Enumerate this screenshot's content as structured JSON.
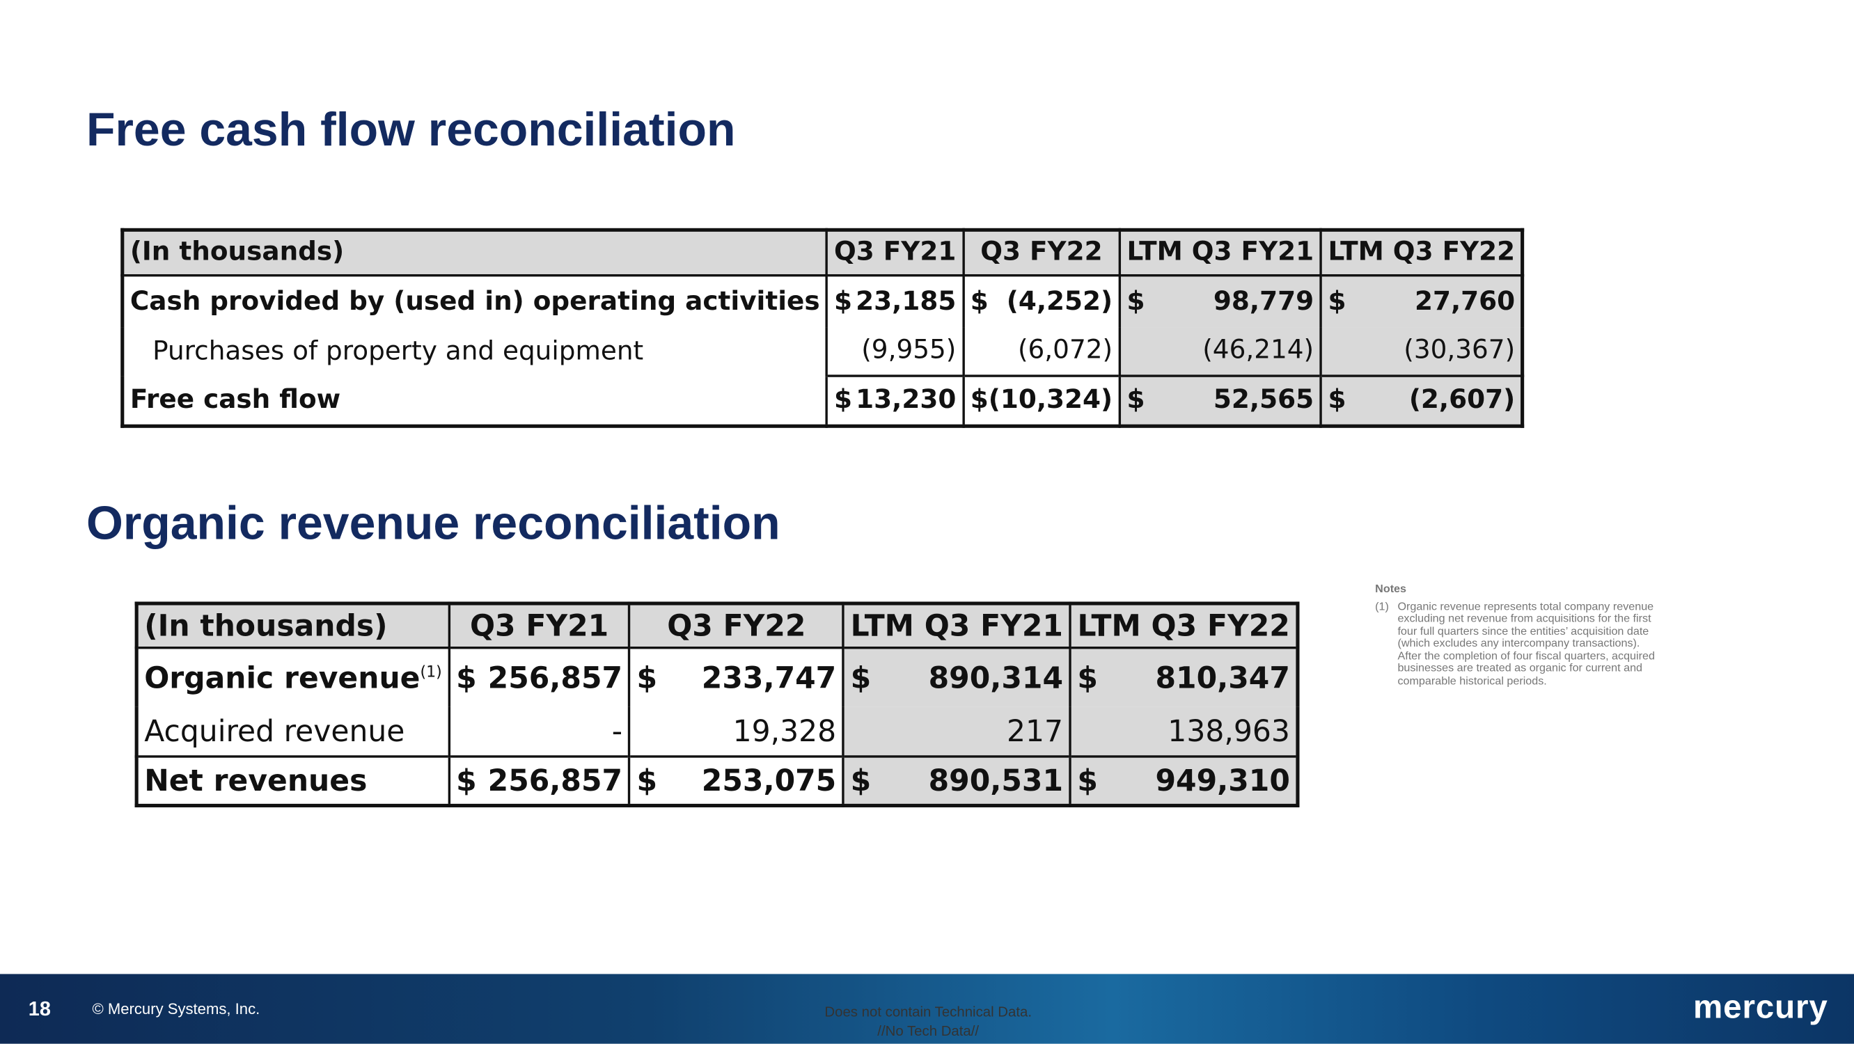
{
  "titles": {
    "fcf": "Free cash flow reconciliation",
    "organic": "Organic revenue reconciliation"
  },
  "fcf_table": {
    "header": [
      "(In thousands)",
      "Q3 FY21",
      "Q3 FY22",
      "LTM Q3 FY21",
      "LTM Q3 FY22"
    ],
    "rows": [
      {
        "label": "Cash provided by (used in) operating activities",
        "cells": [
          {
            "cur": "$",
            "amt": "23,185"
          },
          {
            "cur": "$",
            "amt": "(4,252)"
          },
          {
            "cur": "$",
            "amt": "98,779"
          },
          {
            "cur": "$",
            "amt": "27,760"
          }
        ]
      },
      {
        "label": "Purchases of property and equipment",
        "cells": [
          "(9,955)",
          "(6,072)",
          "(46,214)",
          "(30,367)"
        ]
      },
      {
        "label": "Free cash flow",
        "cells": [
          {
            "cur": "$",
            "amt": "13,230"
          },
          {
            "cur": "$",
            "amt": "(10,324)"
          },
          {
            "cur": "$",
            "amt": "52,565"
          },
          {
            "cur": "$",
            "amt": "(2,607)"
          }
        ]
      }
    ]
  },
  "organic_table": {
    "header": [
      "(In thousands)",
      "Q3 FY21",
      "Q3 FY22",
      "LTM Q3 FY21",
      "LTM Q3 FY22"
    ],
    "rows": [
      {
        "label": "Organic revenue",
        "note": "(1)",
        "cells": [
          {
            "cur": "$",
            "amt": "256,857"
          },
          {
            "cur": "$",
            "amt": "233,747"
          },
          {
            "cur": "$",
            "amt": "890,314"
          },
          {
            "cur": "$",
            "amt": "810,347"
          }
        ]
      },
      {
        "label": "Acquired revenue",
        "cells": [
          "-",
          "19,328",
          "217",
          "138,963"
        ]
      },
      {
        "label": "Net revenues",
        "cells": [
          {
            "cur": "$",
            "amt": "256,857"
          },
          {
            "cur": "$",
            "amt": "253,075"
          },
          {
            "cur": "$",
            "amt": "890,531"
          },
          {
            "cur": "$",
            "amt": "949,310"
          }
        ]
      }
    ]
  },
  "notes": {
    "title": "Notes",
    "items": [
      {
        "marker": "(1)",
        "text": "Organic revenue represents total company revenue excluding net revenue from acquisitions for the first four full quarters since the entities’ acquisition date (which excludes any intercompany transactions). After the completion of four fiscal quarters, acquired businesses are treated as organic for current and comparable historical periods."
      }
    ]
  },
  "footer": {
    "page": "18",
    "copyright": "© Mercury Systems, Inc.",
    "disclaimer": [
      "Does not contain Technical Data.",
      "//No Tech Data//"
    ],
    "logo": "mercury"
  }
}
